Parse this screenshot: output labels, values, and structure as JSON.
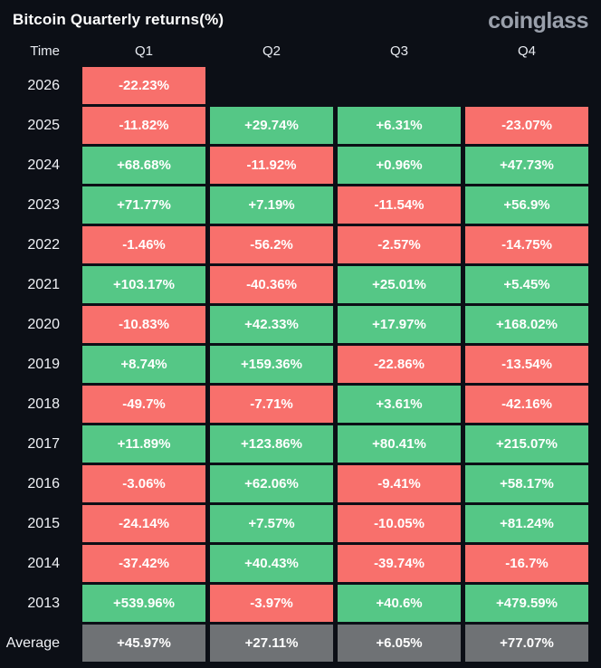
{
  "header": {
    "title": "Bitcoin Quarterly returns(%)",
    "logo": "coinglass"
  },
  "colors": {
    "positive": "#55c786",
    "negative": "#f8706c",
    "neutral": "#6f7275",
    "background": "#0c0f16",
    "cell_text": "#ffffff"
  },
  "table": {
    "columns": [
      "Time",
      "Q1",
      "Q2",
      "Q3",
      "Q4"
    ]
  },
  "chart_data": {
    "type": "heatmap",
    "title": "Bitcoin Quarterly returns(%)",
    "columns": [
      "Q1",
      "Q2",
      "Q3",
      "Q4"
    ],
    "unit": "%",
    "legend": "green = positive return, red = negative return, gray = average row; blank cell = no data yet",
    "rows": [
      {
        "label": "2026",
        "cells": [
          "-22.23%",
          null,
          null,
          null
        ],
        "values": [
          -22.23,
          null,
          null,
          null
        ]
      },
      {
        "label": "2025",
        "cells": [
          "-11.82%",
          "+29.74%",
          "+6.31%",
          "-23.07%"
        ],
        "values": [
          -11.82,
          29.74,
          6.31,
          -23.07
        ]
      },
      {
        "label": "2024",
        "cells": [
          "+68.68%",
          "-11.92%",
          "+0.96%",
          "+47.73%"
        ],
        "values": [
          68.68,
          -11.92,
          0.96,
          47.73
        ]
      },
      {
        "label": "2023",
        "cells": [
          "+71.77%",
          "+7.19%",
          "-11.54%",
          "+56.9%"
        ],
        "values": [
          71.77,
          7.19,
          -11.54,
          56.9
        ]
      },
      {
        "label": "2022",
        "cells": [
          "-1.46%",
          "-56.2%",
          "-2.57%",
          "-14.75%"
        ],
        "values": [
          -1.46,
          -56.2,
          -2.57,
          -14.75
        ]
      },
      {
        "label": "2021",
        "cells": [
          "+103.17%",
          "-40.36%",
          "+25.01%",
          "+5.45%"
        ],
        "values": [
          103.17,
          -40.36,
          25.01,
          5.45
        ]
      },
      {
        "label": "2020",
        "cells": [
          "-10.83%",
          "+42.33%",
          "+17.97%",
          "+168.02%"
        ],
        "values": [
          -10.83,
          42.33,
          17.97,
          168.02
        ]
      },
      {
        "label": "2019",
        "cells": [
          "+8.74%",
          "+159.36%",
          "-22.86%",
          "-13.54%"
        ],
        "values": [
          8.74,
          159.36,
          -22.86,
          -13.54
        ]
      },
      {
        "label": "2018",
        "cells": [
          "-49.7%",
          "-7.71%",
          "+3.61%",
          "-42.16%"
        ],
        "values": [
          -49.7,
          -7.71,
          3.61,
          -42.16
        ]
      },
      {
        "label": "2017",
        "cells": [
          "+11.89%",
          "+123.86%",
          "+80.41%",
          "+215.07%"
        ],
        "values": [
          11.89,
          123.86,
          80.41,
          215.07
        ]
      },
      {
        "label": "2016",
        "cells": [
          "-3.06%",
          "+62.06%",
          "-9.41%",
          "+58.17%"
        ],
        "values": [
          -3.06,
          62.06,
          -9.41,
          58.17
        ]
      },
      {
        "label": "2015",
        "cells": [
          "-24.14%",
          "+7.57%",
          "-10.05%",
          "+81.24%"
        ],
        "values": [
          -24.14,
          7.57,
          -10.05,
          81.24
        ]
      },
      {
        "label": "2014",
        "cells": [
          "-37.42%",
          "+40.43%",
          "-39.74%",
          "-16.7%"
        ],
        "values": [
          -37.42,
          40.43,
          -39.74,
          -16.7
        ]
      },
      {
        "label": "2013",
        "cells": [
          "+539.96%",
          "-3.97%",
          "+40.6%",
          "+479.59%"
        ],
        "values": [
          539.96,
          -3.97,
          40.6,
          479.59
        ]
      },
      {
        "label": "Average",
        "cells": [
          "+45.97%",
          "+27.11%",
          "+6.05%",
          "+77.07%"
        ],
        "values": [
          45.97,
          27.11,
          6.05,
          77.07
        ],
        "style": "neutral"
      }
    ]
  }
}
